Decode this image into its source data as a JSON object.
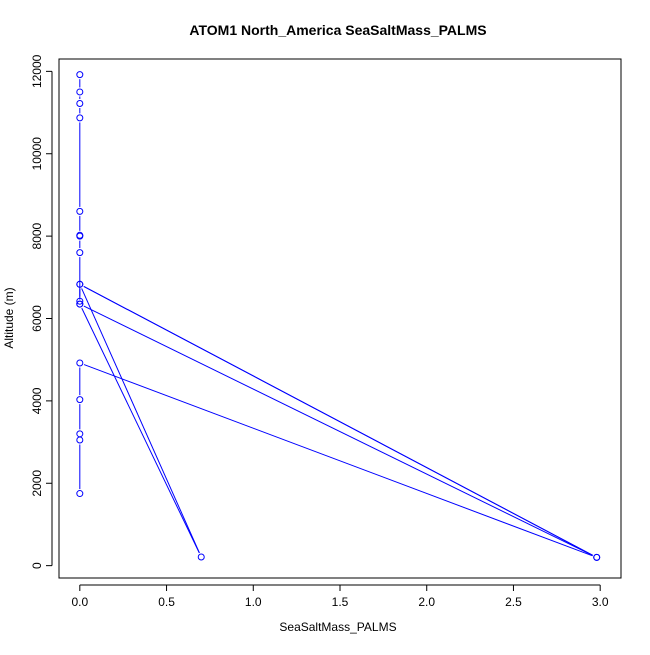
{
  "chart_data": {
    "type": "line",
    "title": "ATOM1 North_America SeaSaltMass_PALMS",
    "xlabel": "SeaSaltMass_PALMS",
    "ylabel": "Altitude (m)",
    "xlim": [
      -0.12,
      3.12
    ],
    "ylim": [
      -300,
      12300
    ],
    "x_ticks": [
      0,
      0.5,
      1,
      1.5,
      2,
      2.5,
      3
    ],
    "x_tick_labels": [
      "0.0",
      "0.5",
      "1.0",
      "1.5",
      "2.0",
      "2.5",
      "3.0"
    ],
    "y_ticks": [
      0,
      2000,
      4000,
      6000,
      8000,
      10000,
      12000
    ],
    "y_tick_labels": [
      "0",
      "2000",
      "4000",
      "6000",
      "8000",
      "10000",
      "12000"
    ],
    "grid": false,
    "series": [
      {
        "marker": "open-circle",
        "color": "#0000ff",
        "points": [
          {
            "x": 0.0,
            "y": 1750
          },
          {
            "x": 0.0,
            "y": 3050
          },
          {
            "x": 0.0,
            "y": 3200
          },
          {
            "x": 0.0,
            "y": 4030
          },
          {
            "x": 0.0,
            "y": 4920
          },
          {
            "x": 2.98,
            "y": 200
          },
          {
            "x": 0.0,
            "y": 6350
          },
          {
            "x": 0.0,
            "y": 6420
          },
          {
            "x": 0.0,
            "y": 6830
          },
          {
            "x": 2.98,
            "y": 200
          },
          {
            "x": 0.0,
            "y": 6830
          },
          {
            "x": 0.7,
            "y": 210
          },
          {
            "x": 0.0,
            "y": 6350
          },
          {
            "x": 0.0,
            "y": 7600
          },
          {
            "x": 0.0,
            "y": 8000
          },
          {
            "x": 0.0,
            "y": 8020
          },
          {
            "x": 0.0,
            "y": 8600
          },
          {
            "x": 0.0,
            "y": 10870
          },
          {
            "x": 0.0,
            "y": 11220
          },
          {
            "x": 0.0,
            "y": 11500
          },
          {
            "x": 0.0,
            "y": 11920
          }
        ]
      }
    ]
  }
}
